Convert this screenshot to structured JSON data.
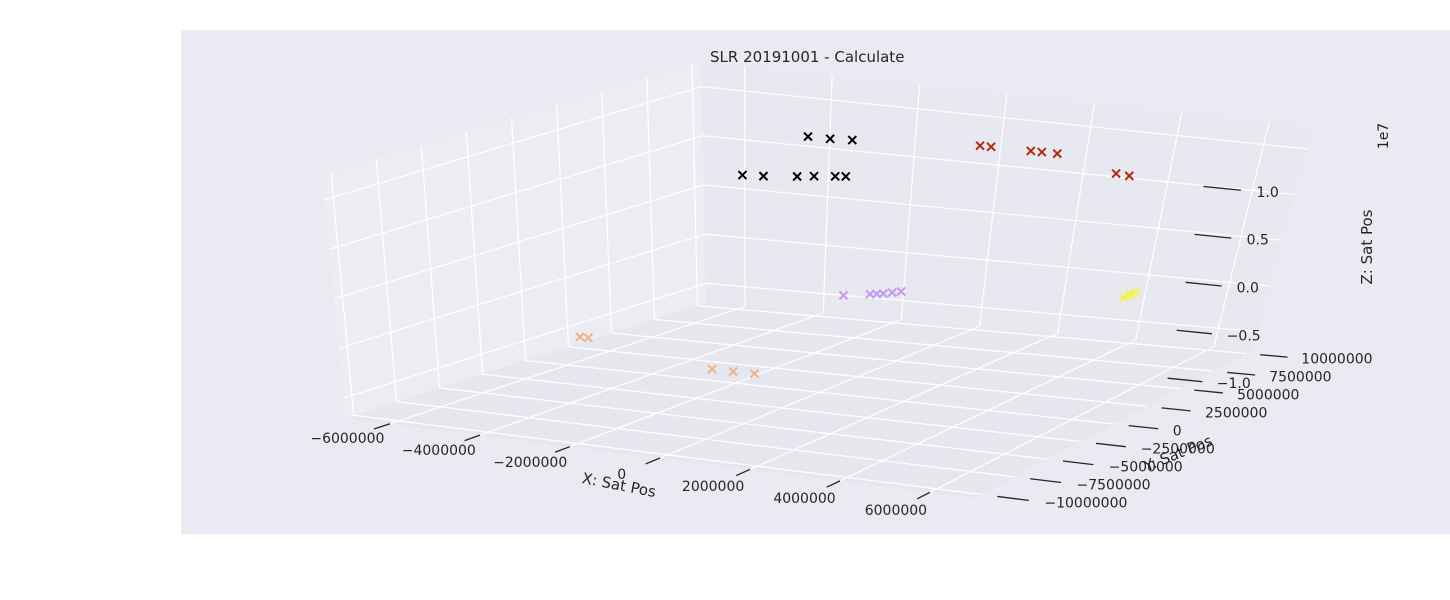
{
  "chart_data": {
    "type": "scatter",
    "title": "SLR 20191001 - Calculate",
    "xlabel": "X: Sat Pos",
    "ylabel": "Y: Sat Pos",
    "zlabel": "Z: Sat Pos",
    "z_offset_label": "1e7",
    "marker": "x",
    "x_ticks": [
      "−6000000",
      "−4000000",
      "−2000000",
      "0",
      "2000000",
      "4000000",
      "6000000"
    ],
    "y_ticks": [
      "−10000000",
      "−7500000",
      "−5000000",
      "−2500000",
      "0",
      "2500000",
      "5000000",
      "7500000",
      "10000000"
    ],
    "z_ticks": [
      "−1.0",
      "−0.5",
      "0.0",
      "0.5",
      "1.0"
    ],
    "xlim": [
      -7000000,
      7000000
    ],
    "ylim": [
      -10500000,
      10500000
    ],
    "zlim": [
      -1.2,
      1.25
    ],
    "grid": true,
    "colors": {
      "figure_background": "#ffffff",
      "axes_background": "#eaeaf2",
      "grid": "#ffffff",
      "black_group": "#000000",
      "red_group": "#b22a10",
      "orange_group": "#eeb384",
      "violet_group": "#c49af2",
      "yellow_group": "#f4f24a"
    },
    "series": [
      {
        "color": "#000000",
        "points": [
          {
            "x": -5600000,
            "y": 9400000,
            "z": 0.22
          },
          {
            "x": -5100000,
            "y": 9400000,
            "z": 0.23
          },
          {
            "x": -4300000,
            "y": 9400000,
            "z": 0.26
          },
          {
            "x": -3900000,
            "y": 9400000,
            "z": 0.28
          },
          {
            "x": -3400000,
            "y": 9400000,
            "z": 0.3
          },
          {
            "x": -3150000,
            "y": 9400000,
            "z": 0.31
          },
          {
            "x": -2400000,
            "y": 5100000,
            "z": 1.0
          },
          {
            "x": -1900000,
            "y": 5100000,
            "z": 1.0
          },
          {
            "x": -1400000,
            "y": 5100000,
            "z": 1.01
          }
        ]
      },
      {
        "color": "#b22a10",
        "points": [
          {
            "x": 1150000,
            "y": 6000000,
            "z": 1.02
          },
          {
            "x": 1400000,
            "y": 6000000,
            "z": 1.02
          },
          {
            "x": 2300000,
            "y": 6000000,
            "z": 1.02
          },
          {
            "x": 2550000,
            "y": 6000000,
            "z": 1.02
          },
          {
            "x": 2900000,
            "y": 6000000,
            "z": 1.02
          },
          {
            "x": 4750000,
            "y": 4600000,
            "z": 0.98
          },
          {
            "x": 5050000,
            "y": 4600000,
            "z": 0.97
          }
        ]
      },
      {
        "color": "#eeb384",
        "points": [
          {
            "x": -6500000,
            "y": 2000000,
            "z": -1.05
          },
          {
            "x": -6300000,
            "y": 2000000,
            "z": -1.05
          },
          {
            "x": -2450000,
            "y": -300000,
            "z": -1.06
          },
          {
            "x": -1950000,
            "y": -300000,
            "z": -1.06
          },
          {
            "x": -1450000,
            "y": -300000,
            "z": -1.06
          }
        ]
      },
      {
        "color": "#c49af2",
        "points": [
          {
            "x": 800000,
            "y": -1000000,
            "z": -0.12
          },
          {
            "x": 1400000,
            "y": -1000000,
            "z": -0.08
          },
          {
            "x": 1550000,
            "y": -1000000,
            "z": -0.07
          },
          {
            "x": 1700000,
            "y": -1000000,
            "z": -0.06
          },
          {
            "x": 1900000,
            "y": -1000000,
            "z": -0.04
          },
          {
            "x": 2100000,
            "y": -1000000,
            "z": -0.02
          }
        ]
      },
      {
        "color": "#f4f24a",
        "points": [
          {
            "x": 6500000,
            "y": 1000000,
            "z": 0.0
          },
          {
            "x": 6600000,
            "y": 1000000,
            "z": 0.02
          },
          {
            "x": 6650000,
            "y": 1000000,
            "z": 0.04
          },
          {
            "x": 6750000,
            "y": 1000000,
            "z": 0.06
          }
        ]
      }
    ]
  }
}
